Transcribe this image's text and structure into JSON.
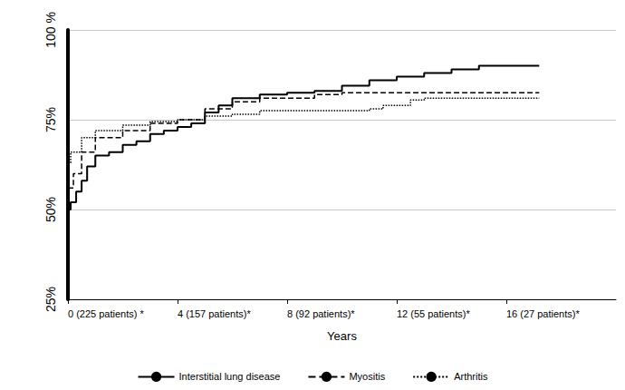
{
  "chart_data": {
    "type": "step",
    "x_label": "Years",
    "xlim": [
      0,
      20
    ],
    "xticks": [
      {
        "value": 0,
        "label": "0 (225 patients) *"
      },
      {
        "value": 4,
        "label": "4 (157 patients)*"
      },
      {
        "value": 8,
        "label": "8 (92 patients)*"
      },
      {
        "value": 12,
        "label": "12 (55 patients)*"
      },
      {
        "value": 16,
        "label": "16 (27 patients)*"
      }
    ],
    "ylim": [
      25,
      100
    ],
    "yticks": [
      {
        "value": 25,
        "label": "25%"
      },
      {
        "value": 50,
        "label": "50%"
      },
      {
        "value": 75,
        "label": "75%"
      },
      {
        "value": 100,
        "label": "100 %"
      }
    ],
    "grid": true,
    "legend": "bottom",
    "series": [
      {
        "name": "Interstitial lung disease",
        "color": "#000000",
        "line_style": "solid",
        "x": [
          0,
          0.1,
          0.3,
          0.5,
          0.7,
          1,
          1.5,
          2,
          2.5,
          3,
          3.5,
          4,
          4.5,
          5,
          5.5,
          6,
          7,
          8,
          9,
          10,
          11,
          12,
          13,
          14,
          15,
          17.2
        ],
        "values": [
          50,
          52,
          55,
          58,
          62,
          65,
          66,
          68,
          69,
          71,
          72,
          73,
          74,
          77,
          79,
          81,
          82,
          82.5,
          83,
          84.5,
          86,
          87,
          88,
          89,
          90,
          90
        ]
      },
      {
        "name": "Myositis",
        "color": "#000000",
        "line_style": "dashed",
        "x": [
          0,
          0.2,
          0.5,
          1,
          2,
          3,
          4,
          5,
          6,
          7,
          9,
          10,
          17.2
        ],
        "values": [
          56,
          60,
          66,
          70,
          72,
          74,
          75,
          78,
          80,
          81,
          82,
          82.5,
          82.5
        ]
      },
      {
        "name": "Arthritis",
        "color": "#000000",
        "line_style": "dotted",
        "x": [
          0,
          0.1,
          0.5,
          1,
          2,
          3,
          4,
          5,
          6,
          7,
          11,
          11.5,
          12.5,
          13,
          17.2
        ],
        "values": [
          63,
          66,
          70,
          72,
          73.5,
          74.5,
          75,
          76,
          76.5,
          77.5,
          78,
          79,
          80.5,
          81,
          81
        ]
      }
    ]
  }
}
